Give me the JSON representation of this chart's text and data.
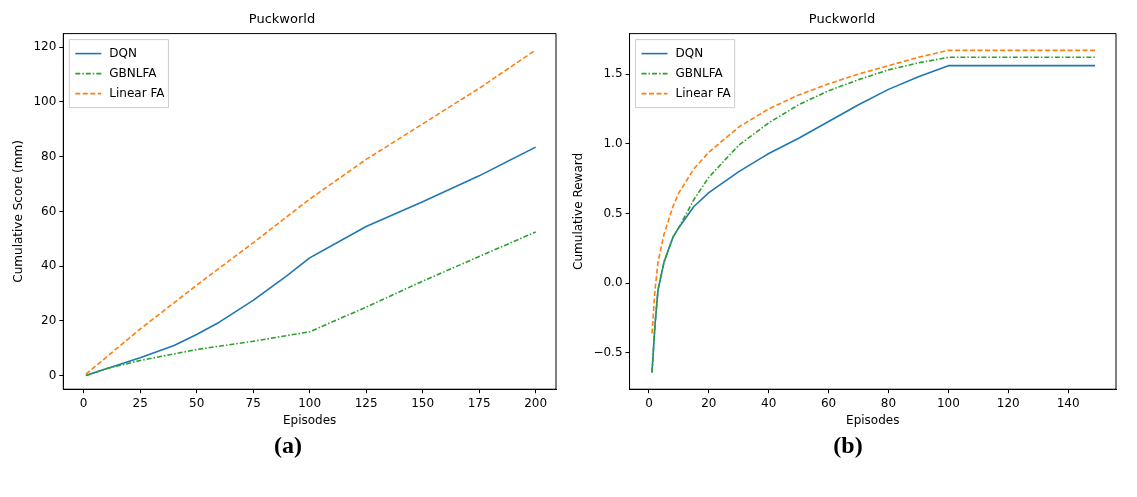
{
  "chart_data": [
    {
      "type": "line",
      "title": "Puckworld",
      "xlabel": "Episodes",
      "ylabel": "Cumulative Score (mm)",
      "annotations": [
        "(a)"
      ],
      "xlim": [
        -9,
        209
      ],
      "ylim": [
        -5,
        125
      ],
      "xticks": [
        0,
        25,
        50,
        75,
        100,
        125,
        150,
        175,
        200
      ],
      "yticks": [
        0,
        20,
        40,
        60,
        80,
        100,
        120
      ],
      "grid": false,
      "legend": "top left",
      "series": [
        {
          "name": "DQN",
          "color": "#1f77b4",
          "line_style": "solid",
          "x": [
            1,
            10,
            25,
            40,
            50,
            60,
            75,
            90,
            100,
            125,
            150,
            175,
            200
          ],
          "values": [
            0,
            2.5,
            6.5,
            11,
            15,
            19.5,
            27.5,
            36.5,
            43,
            54.5,
            63.5,
            73,
            83.5
          ]
        },
        {
          "name": "GBNLFA",
          "color": "#2ca02c",
          "line_style": "dashdot",
          "x": [
            1,
            10,
            25,
            50,
            75,
            100,
            125,
            150,
            175,
            200
          ],
          "values": [
            0,
            2.5,
            5.5,
            9.5,
            12.5,
            16,
            25,
            34.5,
            43.5,
            52.5
          ]
        },
        {
          "name": "Linear FA",
          "color": "#ff7f0e",
          "line_style": "dashed",
          "x": [
            1,
            25,
            50,
            75,
            100,
            125,
            150,
            175,
            200
          ],
          "values": [
            0.5,
            17,
            33,
            48.5,
            64.5,
            79,
            92,
            105,
            119
          ]
        }
      ]
    },
    {
      "type": "line",
      "title": "Puckworld",
      "xlabel": "Episodes",
      "ylabel": "Cumulative Reward",
      "annotations": [
        "(b)"
      ],
      "xlim": [
        -6.5,
        156
      ],
      "ylim": [
        -0.76,
        1.79
      ],
      "xticks": [
        0,
        20,
        40,
        60,
        80,
        100,
        120,
        140
      ],
      "yticks": [
        {
          "value": -0.5,
          "label": "−0.5"
        },
        {
          "value": 0,
          "label": "0.0"
        },
        {
          "value": 0.5,
          "label": "0.5"
        },
        {
          "value": 1,
          "label": "1.0"
        },
        {
          "value": 1.5,
          "label": "1.5"
        }
      ],
      "grid": false,
      "legend": "top left",
      "series": [
        {
          "name": "DQN",
          "color": "#1f77b4",
          "line_style": "solid",
          "x": [
            1,
            2,
            3,
            5,
            8,
            10,
            15,
            20,
            30,
            40,
            50,
            60,
            70,
            80,
            90,
            100,
            149
          ],
          "values": [
            -0.64,
            -0.3,
            -0.05,
            0.15,
            0.33,
            0.4,
            0.55,
            0.65,
            0.8,
            0.93,
            1.04,
            1.16,
            1.28,
            1.39,
            1.48,
            1.56,
            1.56
          ]
        },
        {
          "name": "GBNLFA",
          "color": "#2ca02c",
          "line_style": "dashdot",
          "x": [
            1,
            2,
            3,
            5,
            8,
            10,
            15,
            20,
            30,
            40,
            50,
            60,
            70,
            80,
            90,
            100,
            149
          ],
          "values": [
            -0.64,
            -0.3,
            -0.05,
            0.15,
            0.33,
            0.4,
            0.6,
            0.76,
            0.99,
            1.15,
            1.28,
            1.38,
            1.46,
            1.53,
            1.58,
            1.62,
            1.62
          ]
        },
        {
          "name": "Linear FA",
          "color": "#ff7f0e",
          "line_style": "dashed",
          "x": [
            1,
            2,
            3,
            5,
            8,
            10,
            15,
            20,
            30,
            40,
            50,
            60,
            70,
            80,
            90,
            100,
            149
          ],
          "values": [
            -0.36,
            -0.05,
            0.15,
            0.35,
            0.55,
            0.65,
            0.82,
            0.94,
            1.12,
            1.25,
            1.35,
            1.43,
            1.5,
            1.56,
            1.62,
            1.67,
            1.67
          ]
        }
      ]
    }
  ]
}
